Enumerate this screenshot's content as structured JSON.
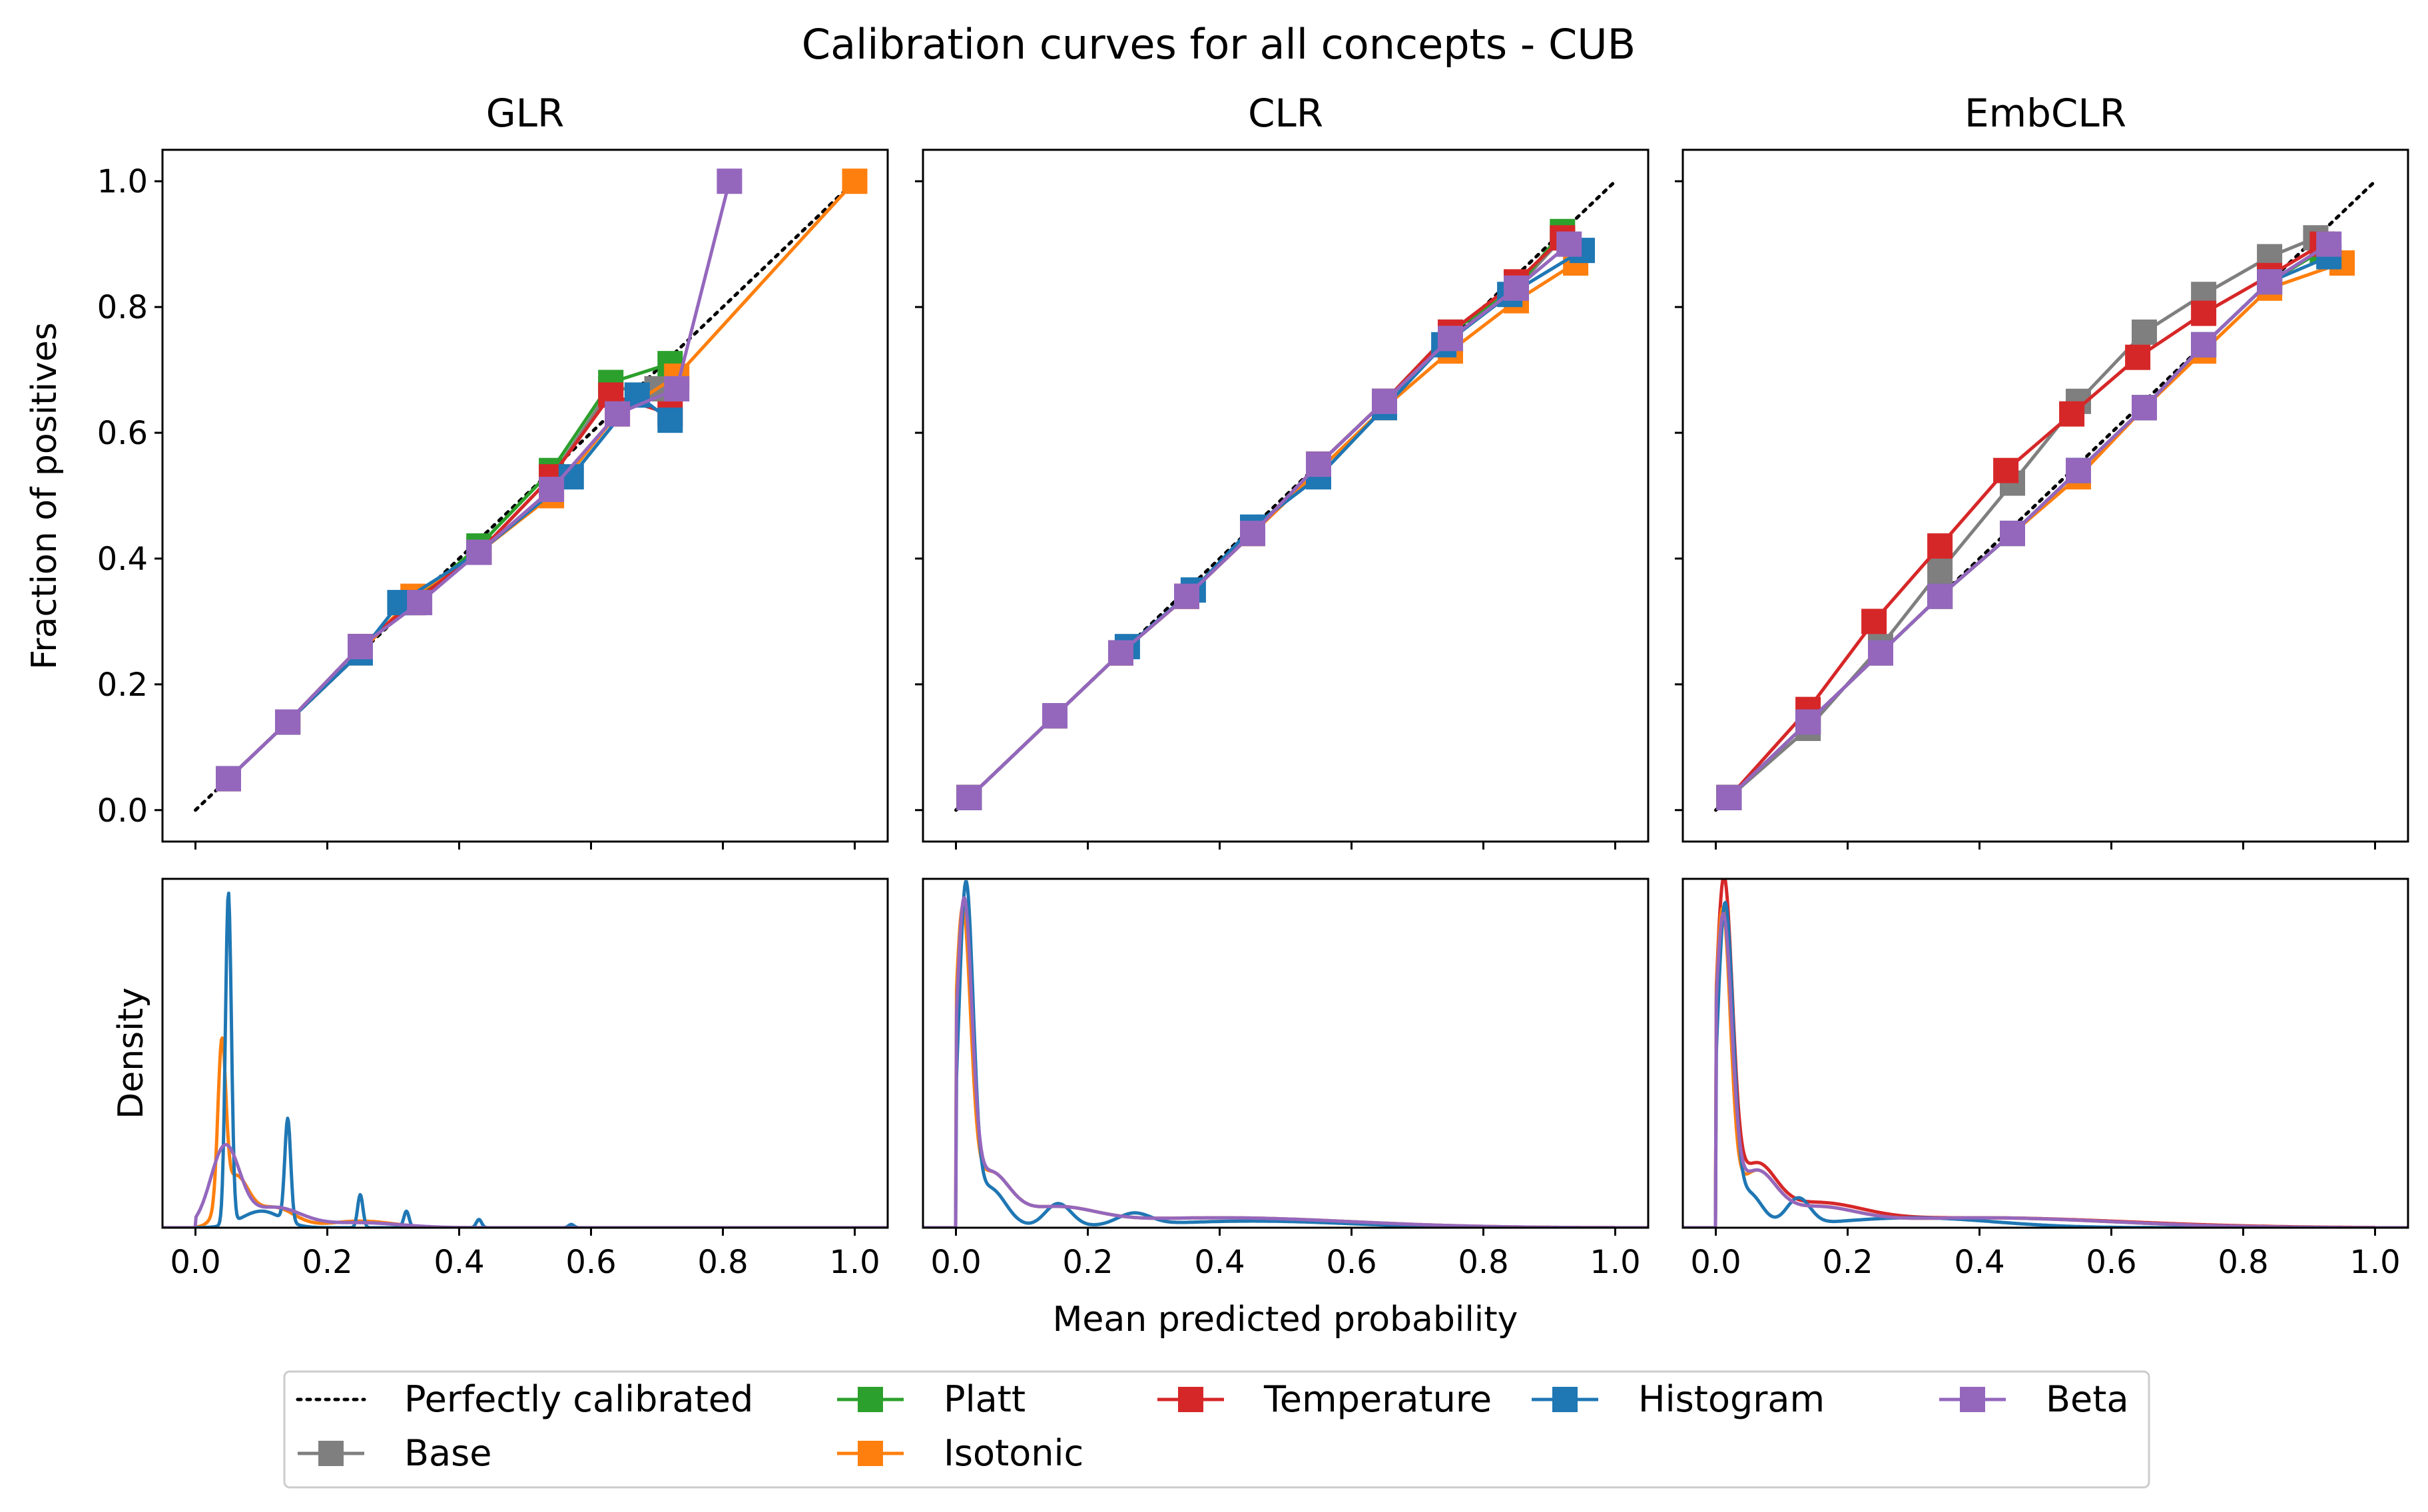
{
  "figure": {
    "suptitle": "Calibration curves for all concepts - CUB",
    "xlabel": "Mean predicted probability",
    "ylabel_top": "Fraction of positives",
    "ylabel_bottom": "Density"
  },
  "colors": {
    "perfect": "#000000",
    "Base": "#7f7f7f",
    "Platt": "#2ca02c",
    "Isotonic": "#ff7f0e",
    "Temperature": "#d62728",
    "Histogram": "#1f77b4",
    "Beta": "#9467bd"
  },
  "legend": {
    "placement": "bottom-center",
    "entries": [
      {
        "key": "perfect",
        "label": "Perfectly calibrated"
      },
      {
        "key": "Base",
        "label": "Base"
      },
      {
        "key": "Platt",
        "label": "Platt"
      },
      {
        "key": "Isotonic",
        "label": "Isotonic"
      },
      {
        "key": "Temperature",
        "label": "Temperature"
      },
      {
        "key": "Histogram",
        "label": "Histogram"
      },
      {
        "key": "Beta",
        "label": "Beta"
      }
    ]
  },
  "chart_data": [
    {
      "title": "GLR",
      "type": "line",
      "xlim": [
        -0.05,
        1.05
      ],
      "ylim": [
        -0.05,
        1.05
      ],
      "x_ticks": [
        "0.0",
        "0.2",
        "0.4",
        "0.6",
        "0.8",
        "1.0"
      ],
      "y_ticks": [
        "0.0",
        "0.2",
        "0.4",
        "0.6",
        "0.8",
        "1.0"
      ],
      "series": [
        {
          "name": "Base",
          "x": [
            0.05,
            0.14,
            0.25,
            0.33,
            0.43,
            0.54,
            0.63,
            0.7
          ],
          "y": [
            0.05,
            0.14,
            0.26,
            0.33,
            0.41,
            0.53,
            0.67,
            0.67
          ]
        },
        {
          "name": "Platt",
          "x": [
            0.05,
            0.14,
            0.25,
            0.33,
            0.43,
            0.54,
            0.63,
            0.72
          ],
          "y": [
            0.05,
            0.14,
            0.26,
            0.33,
            0.42,
            0.54,
            0.68,
            0.71
          ]
        },
        {
          "name": "Isotonic",
          "x": [
            0.05,
            0.14,
            0.25,
            0.33,
            0.43,
            0.54,
            0.64,
            0.73,
            1.0
          ],
          "y": [
            0.05,
            0.14,
            0.25,
            0.34,
            0.41,
            0.5,
            0.63,
            0.69,
            1.0
          ]
        },
        {
          "name": "Temperature",
          "x": [
            0.05,
            0.14,
            0.25,
            0.33,
            0.43,
            0.54,
            0.63,
            0.72
          ],
          "y": [
            0.05,
            0.14,
            0.26,
            0.33,
            0.41,
            0.53,
            0.66,
            0.63
          ]
        },
        {
          "name": "Histogram",
          "x": [
            0.05,
            0.14,
            0.25,
            0.31,
            0.43,
            0.57,
            0.67,
            0.72
          ],
          "y": [
            0.05,
            0.14,
            0.25,
            0.33,
            0.41,
            0.53,
            0.66,
            0.62
          ]
        },
        {
          "name": "Beta",
          "x": [
            0.05,
            0.14,
            0.25,
            0.34,
            0.43,
            0.54,
            0.64,
            0.73,
            0.81
          ],
          "y": [
            0.05,
            0.14,
            0.26,
            0.33,
            0.41,
            0.51,
            0.63,
            0.67,
            1.0
          ]
        }
      ],
      "density": [
        {
          "name": "Isotonic",
          "peaks": [
            [
              0.04,
              0.48,
              0.006
            ],
            [
              0.06,
              0.15,
              0.02
            ],
            [
              0.12,
              0.06,
              0.03
            ],
            [
              0.25,
              0.02,
              0.05
            ]
          ]
        },
        {
          "name": "Histogram",
          "peaks": [
            [
              0.05,
              1.0,
              0.0045
            ],
            [
              0.14,
              0.31,
              0.0045
            ],
            [
              0.25,
              0.1,
              0.004
            ],
            [
              0.32,
              0.05,
              0.004
            ],
            [
              0.43,
              0.025,
              0.004
            ],
            [
              0.57,
              0.01,
              0.004
            ],
            [
              0.1,
              0.05,
              0.03
            ]
          ]
        },
        {
          "name": "Beta",
          "peaks": [
            [
              0.045,
              0.24,
              0.022
            ],
            [
              0.12,
              0.06,
              0.04
            ],
            [
              0.25,
              0.015,
              0.06
            ]
          ]
        }
      ]
    },
    {
      "title": "CLR",
      "type": "line",
      "xlim": [
        -0.05,
        1.05
      ],
      "ylim": [
        -0.05,
        1.05
      ],
      "x_ticks": [
        "0.0",
        "0.2",
        "0.4",
        "0.6",
        "0.8",
        "1.0"
      ],
      "y_ticks": [
        "0.0",
        "0.2",
        "0.4",
        "0.6",
        "0.8",
        "1.0"
      ],
      "series": [
        {
          "name": "Base",
          "x": [
            0.02,
            0.15,
            0.25,
            0.35,
            0.45,
            0.55,
            0.65,
            0.75,
            0.85,
            0.92
          ],
          "y": [
            0.02,
            0.15,
            0.25,
            0.34,
            0.44,
            0.55,
            0.65,
            0.76,
            0.83,
            0.91
          ]
        },
        {
          "name": "Platt",
          "x": [
            0.02,
            0.15,
            0.25,
            0.35,
            0.45,
            0.55,
            0.65,
            0.75,
            0.85,
            0.92
          ],
          "y": [
            0.02,
            0.15,
            0.25,
            0.34,
            0.44,
            0.55,
            0.65,
            0.76,
            0.83,
            0.92
          ]
        },
        {
          "name": "Isotonic",
          "x": [
            0.02,
            0.15,
            0.25,
            0.35,
            0.45,
            0.55,
            0.65,
            0.75,
            0.85,
            0.94
          ],
          "y": [
            0.02,
            0.15,
            0.25,
            0.34,
            0.44,
            0.54,
            0.64,
            0.73,
            0.81,
            0.87
          ]
        },
        {
          "name": "Temperature",
          "x": [
            0.02,
            0.15,
            0.25,
            0.35,
            0.45,
            0.55,
            0.65,
            0.75,
            0.85,
            0.92
          ],
          "y": [
            0.02,
            0.15,
            0.25,
            0.34,
            0.44,
            0.55,
            0.65,
            0.76,
            0.84,
            0.91
          ]
        },
        {
          "name": "Histogram",
          "x": [
            0.02,
            0.15,
            0.26,
            0.36,
            0.45,
            0.55,
            0.65,
            0.74,
            0.84,
            0.95
          ],
          "y": [
            0.02,
            0.15,
            0.26,
            0.35,
            0.45,
            0.53,
            0.64,
            0.74,
            0.82,
            0.89
          ]
        },
        {
          "name": "Beta",
          "x": [
            0.02,
            0.15,
            0.25,
            0.35,
            0.45,
            0.55,
            0.65,
            0.75,
            0.85,
            0.93
          ],
          "y": [
            0.02,
            0.15,
            0.25,
            0.34,
            0.44,
            0.55,
            0.65,
            0.75,
            0.83,
            0.9
          ]
        }
      ],
      "density": [
        {
          "name": "Isotonic",
          "peaks": [
            [
              0.01,
              0.9,
              0.012
            ],
            [
              0.05,
              0.15,
              0.03
            ],
            [
              0.15,
              0.05,
              0.06
            ],
            [
              0.4,
              0.03,
              0.2
            ]
          ]
        },
        {
          "name": "Histogram",
          "peaks": [
            [
              0.015,
              1.0,
              0.011
            ],
            [
              0.05,
              0.12,
              0.025
            ],
            [
              0.155,
              0.07,
              0.02
            ],
            [
              0.27,
              0.035,
              0.025
            ],
            [
              0.45,
              0.02,
              0.15
            ]
          ]
        },
        {
          "name": "Beta",
          "peaks": [
            [
              0.012,
              0.92,
              0.012
            ],
            [
              0.05,
              0.15,
              0.03
            ],
            [
              0.15,
              0.05,
              0.06
            ],
            [
              0.4,
              0.03,
              0.2
            ]
          ]
        }
      ]
    },
    {
      "title": "EmbCLR",
      "type": "line",
      "xlim": [
        -0.05,
        1.05
      ],
      "ylim": [
        -0.05,
        1.05
      ],
      "x_ticks": [
        "0.0",
        "0.2",
        "0.4",
        "0.6",
        "0.8",
        "1.0"
      ],
      "y_ticks": [
        "0.0",
        "0.2",
        "0.4",
        "0.6",
        "0.8",
        "1.0"
      ],
      "series": [
        {
          "name": "Base",
          "x": [
            0.02,
            0.14,
            0.25,
            0.34,
            0.45,
            0.55,
            0.65,
            0.74,
            0.84,
            0.91
          ],
          "y": [
            0.02,
            0.13,
            0.26,
            0.38,
            0.52,
            0.65,
            0.76,
            0.82,
            0.88,
            0.91
          ]
        },
        {
          "name": "Platt",
          "x": [
            0.02,
            0.14,
            0.25,
            0.34,
            0.45,
            0.55,
            0.65,
            0.74,
            0.84,
            0.92
          ],
          "y": [
            0.02,
            0.14,
            0.25,
            0.34,
            0.44,
            0.54,
            0.64,
            0.74,
            0.84,
            0.89
          ]
        },
        {
          "name": "Isotonic",
          "x": [
            0.02,
            0.14,
            0.25,
            0.34,
            0.45,
            0.55,
            0.65,
            0.74,
            0.84,
            0.95
          ],
          "y": [
            0.02,
            0.14,
            0.25,
            0.34,
            0.44,
            0.53,
            0.64,
            0.73,
            0.83,
            0.87
          ]
        },
        {
          "name": "Temperature",
          "x": [
            0.02,
            0.14,
            0.24,
            0.34,
            0.44,
            0.54,
            0.64,
            0.74,
            0.84,
            0.92
          ],
          "y": [
            0.02,
            0.16,
            0.3,
            0.42,
            0.54,
            0.63,
            0.72,
            0.79,
            0.85,
            0.9
          ]
        },
        {
          "name": "Histogram",
          "x": [
            0.02,
            0.14,
            0.25,
            0.34,
            0.45,
            0.55,
            0.65,
            0.74,
            0.84,
            0.93
          ],
          "y": [
            0.02,
            0.14,
            0.25,
            0.34,
            0.44,
            0.54,
            0.64,
            0.74,
            0.84,
            0.88
          ]
        },
        {
          "name": "Beta",
          "x": [
            0.02,
            0.14,
            0.25,
            0.34,
            0.45,
            0.55,
            0.65,
            0.74,
            0.84,
            0.93
          ],
          "y": [
            0.02,
            0.14,
            0.25,
            0.34,
            0.44,
            0.54,
            0.64,
            0.74,
            0.84,
            0.9
          ]
        }
      ],
      "density": [
        {
          "name": "Temperature",
          "peaks": [
            [
              0.012,
              1.0,
              0.013
            ],
            [
              0.06,
              0.16,
              0.03
            ],
            [
              0.15,
              0.06,
              0.07
            ],
            [
              0.4,
              0.03,
              0.22
            ]
          ]
        },
        {
          "name": "Isotonic",
          "peaks": [
            [
              0.01,
              0.92,
              0.012
            ],
            [
              0.06,
              0.15,
              0.03
            ],
            [
              0.15,
              0.05,
              0.06
            ],
            [
              0.4,
              0.03,
              0.2
            ]
          ]
        },
        {
          "name": "Histogram",
          "peaks": [
            [
              0.014,
              0.96,
              0.012
            ],
            [
              0.05,
              0.1,
              0.02
            ],
            [
              0.125,
              0.08,
              0.018
            ],
            [
              0.3,
              0.03,
              0.12
            ]
          ]
        },
        {
          "name": "Beta",
          "peaks": [
            [
              0.011,
              0.9,
              0.013
            ],
            [
              0.06,
              0.15,
              0.03
            ],
            [
              0.15,
              0.05,
              0.06
            ],
            [
              0.4,
              0.03,
              0.2
            ]
          ]
        }
      ]
    }
  ]
}
